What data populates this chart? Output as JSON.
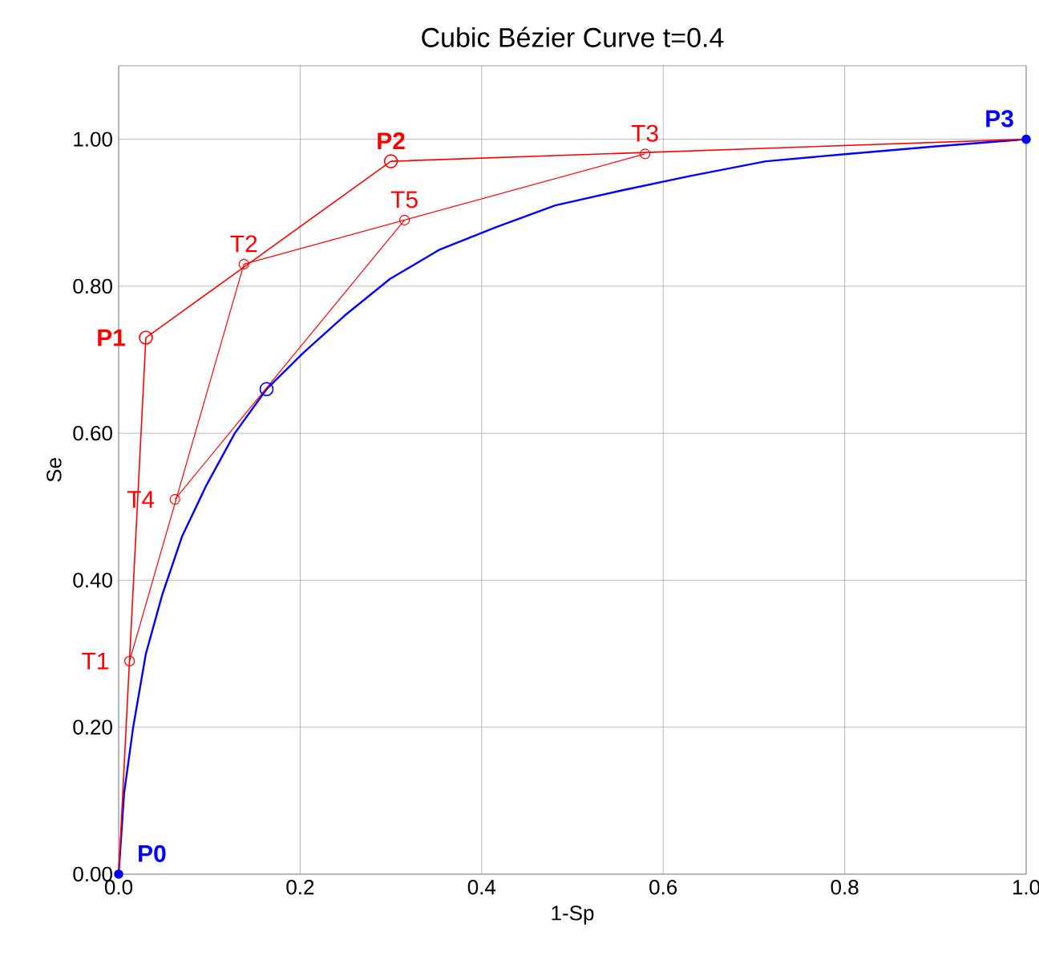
{
  "chart_data": {
    "type": "line",
    "title": "Cubic Bézier Curve t=0.4",
    "xlabel": "1-Sp",
    "ylabel": "Se",
    "xlim": [
      0,
      1
    ],
    "ylim": [
      0,
      1.1
    ],
    "xticks": [
      {
        "value": 0,
        "label": "0.0"
      },
      0.2,
      0.4,
      0.6,
      0.8,
      {
        "value": 1,
        "label": "1.0"
      }
    ],
    "yticks": [
      {
        "value": 0,
        "label": "0.00"
      },
      {
        "value": 0.2,
        "label": "0.20"
      },
      {
        "value": 0.4,
        "label": "0.40"
      },
      {
        "value": 0.6,
        "label": "0.60"
      },
      {
        "value": 0.8,
        "label": "0.80"
      },
      {
        "value": 1,
        "label": "1.00"
      }
    ],
    "grid": true,
    "series": [
      {
        "color": "#0000ff",
        "marker": "none",
        "x": [
          0,
          0.006,
          0.016,
          0.03,
          0.048,
          0.07,
          0.097,
          0.128,
          0.163,
          0.204,
          0.249,
          0.299,
          0.354,
          0.415,
          0.481,
          0.553,
          0.63,
          0.713,
          0.803,
          0.898,
          1
        ],
        "values": [
          0,
          0.11,
          0.2,
          0.3,
          0.38,
          0.46,
          0.53,
          0.6,
          0.66,
          0.71,
          0.76,
          0.81,
          0.85,
          0.88,
          0.91,
          0.93,
          0.95,
          0.97,
          0.98,
          0.99,
          1
        ]
      },
      {
        "color": "#ff0000",
        "marker": "none",
        "x": [
          0,
          0.03,
          0.3,
          1
        ],
        "values": [
          0,
          0.73,
          0.97,
          1
        ]
      },
      {
        "color": "#ff0000",
        "marker": "circle",
        "x": [
          0.012,
          0.138,
          0.58
        ],
        "values": [
          0.29,
          0.83,
          0.98
        ]
      },
      {
        "color": "#ff0000",
        "marker": "circle",
        "x": [
          0.062,
          0.315
        ],
        "values": [
          0.51,
          0.89
        ]
      },
      {
        "type": "scatter",
        "color": "#ff0000",
        "marker": "circle",
        "x": [
          0.03,
          0.3
        ],
        "values": [
          0.73,
          0.97
        ]
      },
      {
        "type": "scatter",
        "color": "#0000ff",
        "marker": "circle",
        "x": [
          0,
          1
        ],
        "values": [
          0,
          1
        ]
      },
      {
        "type": "scatter",
        "color": "#0000ff",
        "marker": "circle",
        "x": [
          0.163
        ],
        "values": [
          0.66
        ]
      }
    ],
    "annotations": [
      {
        "text": "**P0**",
        "x": 0,
        "y": 0
      },
      {
        "text": "**P1**",
        "x": 0.03,
        "y": 0.73
      },
      {
        "text": "**P2**",
        "x": 0.3,
        "y": 0.97
      },
      {
        "text": "**P3**",
        "x": 1,
        "y": 1
      },
      {
        "text": "T1",
        "x": 0.012,
        "y": 0.29
      },
      {
        "text": "T2",
        "x": 0.138,
        "y": 0.83
      },
      {
        "text": "T3",
        "x": 0.58,
        "y": 0.98
      },
      {
        "text": "T4",
        "x": 0.062,
        "y": 0.51
      },
      {
        "text": "T5",
        "x": 0.315,
        "y": 0.89
      }
    ]
  }
}
